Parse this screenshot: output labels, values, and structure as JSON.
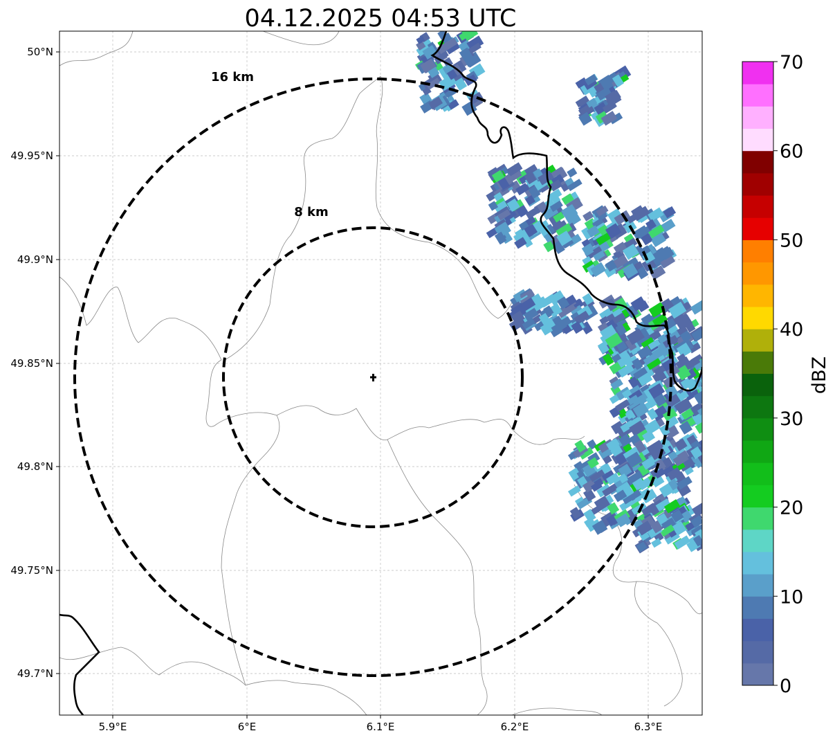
{
  "title": "04.12.2025 04:53 UTC",
  "map": {
    "lon_ticks": [
      "5.9°E",
      "6°E",
      "6.1°E",
      "6.2°E",
      "6.3°E"
    ],
    "lat_ticks": [
      "50°N",
      "49.95°N",
      "49.9°N",
      "49.85°N",
      "49.8°N",
      "49.75°N",
      "49.7°N"
    ],
    "rings": [
      {
        "label": "16 km",
        "radius_km": 16
      },
      {
        "label": "8 km",
        "radius_km": 8
      }
    ],
    "radar_site": {
      "lon": 6.095,
      "lat": 49.843
    }
  },
  "colorbar": {
    "label": "dBZ",
    "ticks": [
      "0",
      "10",
      "20",
      "30",
      "40",
      "50",
      "60",
      "70"
    ],
    "min": 0,
    "max": 70,
    "colors": [
      "#6677aa",
      "#556aa6",
      "#4a62a8",
      "#4e7ab2",
      "#5a9fca",
      "#64c0dd",
      "#5ed6c6",
      "#3fd86e",
      "#14cc20",
      "#12be1a",
      "#10a714",
      "#0f8e12",
      "#0d7710",
      "#0a620c",
      "#4a7a08",
      "#b0b00a",
      "#ffd900",
      "#ffb600",
      "#ff9700",
      "#ff7f00",
      "#e60000",
      "#c60000",
      "#a00000",
      "#800000",
      "#ffdcff",
      "#ffb0ff",
      "#ff70ff",
      "#f030f0"
    ]
  }
}
